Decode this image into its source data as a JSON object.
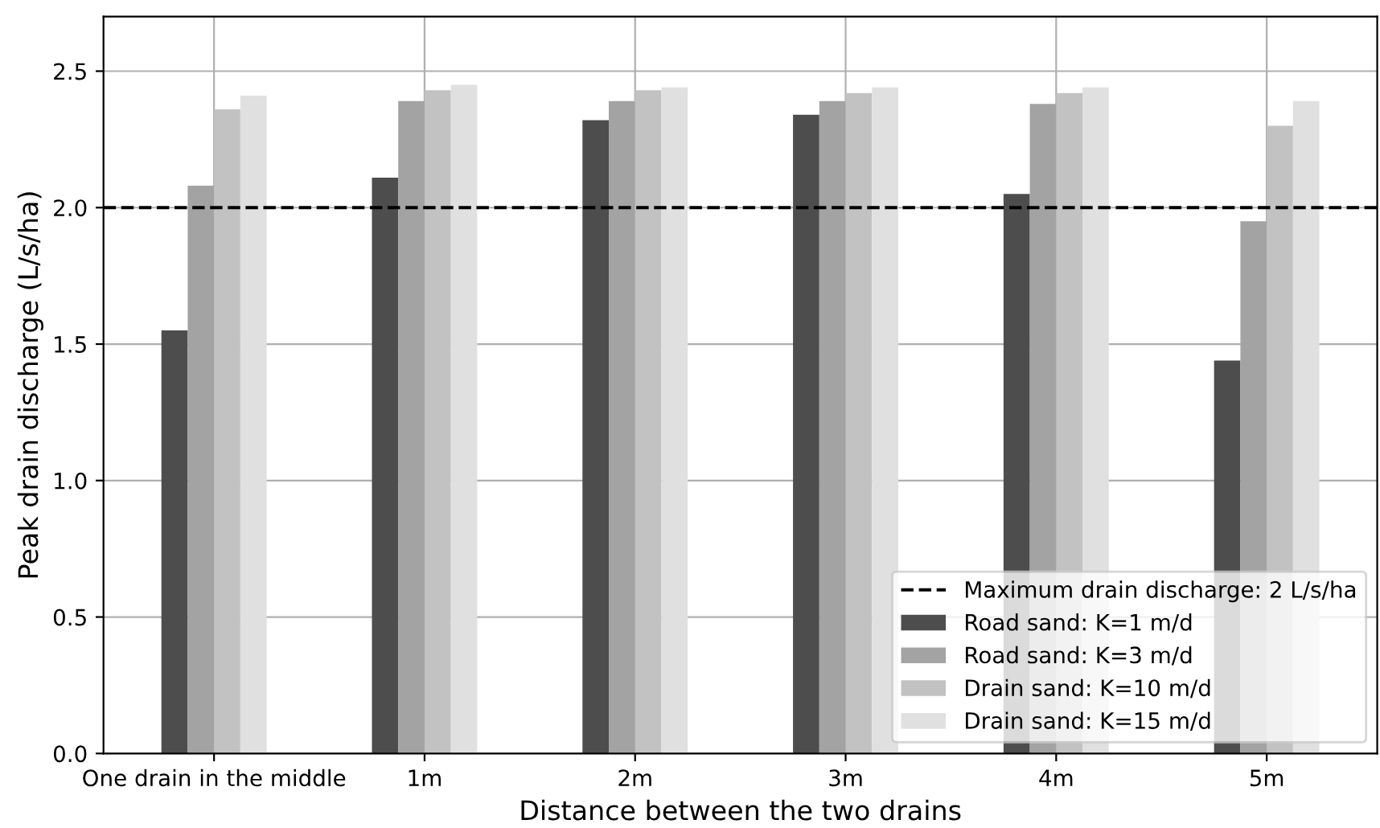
{
  "chart_data": {
    "type": "bar",
    "xlabel": "Distance between the two drains",
    "ylabel": "Peak drain discharge (L/s/ha)",
    "categories": [
      "One drain in the middle",
      "1m",
      "2m",
      "3m",
      "4m",
      "5m"
    ],
    "series": [
      {
        "name": "Road sand: K=1 m/d",
        "color": "#4d4d4d",
        "values": [
          1.55,
          2.11,
          2.32,
          2.34,
          2.05,
          1.44
        ]
      },
      {
        "name": "Road sand: K=3 m/d",
        "color": "#a3a3a3",
        "values": [
          2.08,
          2.39,
          2.39,
          2.39,
          2.38,
          1.95
        ]
      },
      {
        "name": "Drain sand: K=10 m/d",
        "color": "#c2c2c2",
        "values": [
          2.36,
          2.43,
          2.43,
          2.42,
          2.42,
          2.3
        ]
      },
      {
        "name": "Drain sand: K=15 m/d",
        "color": "#e0e0e0",
        "values": [
          2.41,
          2.45,
          2.44,
          2.44,
          2.44,
          2.39
        ]
      }
    ],
    "ylim": [
      0,
      2.7
    ],
    "yticks": [
      {
        "value": 0,
        "label": "0.0"
      },
      0.5,
      {
        "value": 1,
        "label": "1.0"
      },
      1.5,
      {
        "value": 2,
        "label": "2.0"
      },
      2.5
    ],
    "ref_lines": [
      {
        "axis": "y",
        "value": 2,
        "label": "Maximum drain discharge: 2 L/s/ha",
        "color": "#000000",
        "line_style": "dashed"
      }
    ],
    "grid": true,
    "legend": "lower right"
  }
}
